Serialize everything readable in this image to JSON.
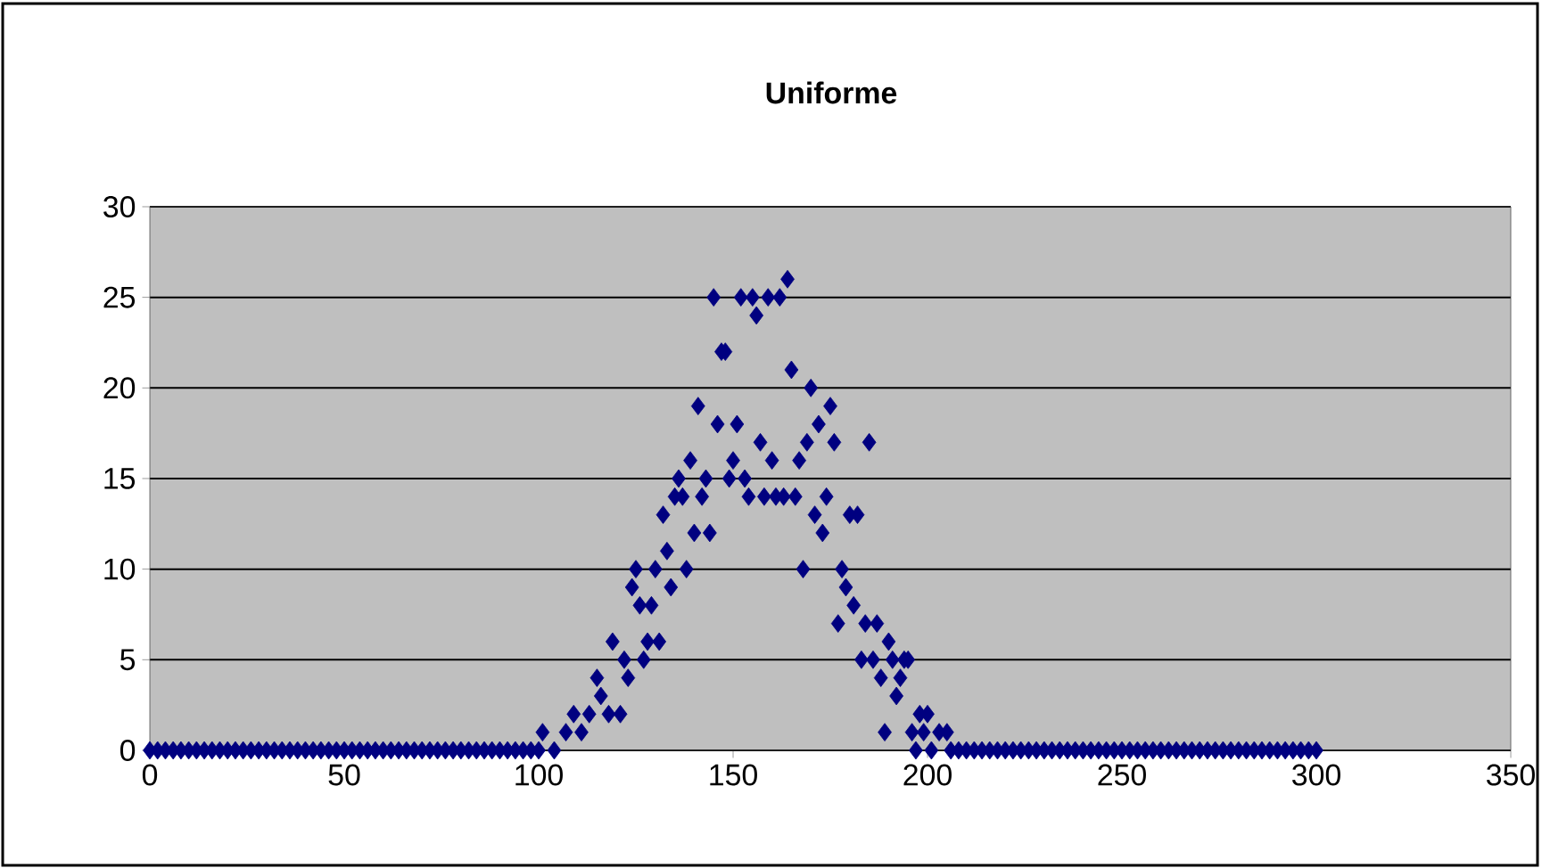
{
  "chart_data": {
    "type": "scatter",
    "title": "Uniforme",
    "xlim": [
      0,
      350
    ],
    "xticks": [
      0,
      50,
      100,
      150,
      200,
      250,
      300,
      350
    ],
    "ylim": [
      0,
      30
    ],
    "yticks": [
      0,
      5,
      10,
      15,
      20,
      25,
      30
    ],
    "grid": "y",
    "marker": "diamond",
    "series": [
      {
        "color": "#000080",
        "x": [
          0,
          2,
          4,
          6,
          8,
          10,
          12,
          14,
          16,
          18,
          20,
          22,
          24,
          26,
          28,
          30,
          32,
          34,
          36,
          38,
          40,
          42,
          44,
          46,
          48,
          50,
          52,
          54,
          56,
          58,
          60,
          62,
          64,
          66,
          68,
          70,
          72,
          74,
          76,
          78,
          80,
          82,
          84,
          86,
          88,
          90,
          92,
          94,
          96,
          98,
          100,
          101,
          104,
          107,
          109,
          111,
          113,
          115,
          116,
          118,
          119,
          121,
          122,
          123,
          124,
          125,
          126,
          127,
          128,
          129,
          130,
          131,
          132,
          133,
          134,
          135,
          136,
          137,
          138,
          139,
          140,
          141,
          142,
          143,
          144,
          145,
          146,
          147,
          148,
          149,
          150,
          151,
          152,
          153,
          154,
          155,
          156,
          157,
          158,
          159,
          160,
          161,
          162,
          163,
          164,
          165,
          166,
          167,
          168,
          169,
          170,
          171,
          172,
          173,
          174,
          175,
          176,
          177,
          178,
          179,
          180,
          181,
          182,
          183,
          184,
          185,
          186,
          187,
          188,
          189,
          190,
          191,
          192,
          193,
          194,
          195,
          196,
          197,
          198,
          199,
          200,
          201,
          203,
          205,
          206,
          208,
          210,
          212,
          214,
          216,
          218,
          220,
          222,
          224,
          226,
          228,
          230,
          232,
          234,
          236,
          238,
          240,
          242,
          244,
          246,
          248,
          250,
          252,
          254,
          256,
          258,
          260,
          262,
          264,
          266,
          268,
          270,
          272,
          274,
          276,
          278,
          280,
          282,
          284,
          286,
          288,
          290,
          292,
          294,
          296,
          298,
          300
        ],
        "values": [
          0,
          0,
          0,
          0,
          0,
          0,
          0,
          0,
          0,
          0,
          0,
          0,
          0,
          0,
          0,
          0,
          0,
          0,
          0,
          0,
          0,
          0,
          0,
          0,
          0,
          0,
          0,
          0,
          0,
          0,
          0,
          0,
          0,
          0,
          0,
          0,
          0,
          0,
          0,
          0,
          0,
          0,
          0,
          0,
          0,
          0,
          0,
          0,
          0,
          0,
          0,
          1,
          0,
          1,
          2,
          1,
          2,
          4,
          3,
          2,
          6,
          2,
          5,
          4,
          9,
          10,
          8,
          5,
          6,
          8,
          10,
          6,
          13,
          11,
          9,
          14,
          15,
          14,
          10,
          16,
          12,
          19,
          14,
          15,
          12,
          25,
          18,
          22,
          22,
          15,
          16,
          18,
          25,
          15,
          14,
          25,
          24,
          17,
          14,
          25,
          16,
          14,
          25,
          14,
          26,
          21,
          14,
          16,
          10,
          17,
          20,
          13,
          18,
          12,
          14,
          19,
          17,
          7,
          10,
          9,
          13,
          8,
          13,
          5,
          7,
          17,
          5,
          7,
          4,
          1,
          6,
          5,
          3,
          4,
          5,
          5,
          1,
          0,
          2,
          1,
          2,
          0,
          1,
          1,
          0,
          0,
          0,
          0,
          0,
          0,
          0,
          0,
          0,
          0,
          0,
          0,
          0,
          0,
          0,
          0,
          0,
          0,
          0,
          0,
          0,
          0,
          0,
          0,
          0,
          0,
          0,
          0,
          0,
          0,
          0,
          0,
          0,
          0,
          0,
          0,
          0,
          0,
          0,
          0,
          0,
          0,
          0,
          0,
          0,
          0,
          0,
          0
        ]
      }
    ]
  }
}
